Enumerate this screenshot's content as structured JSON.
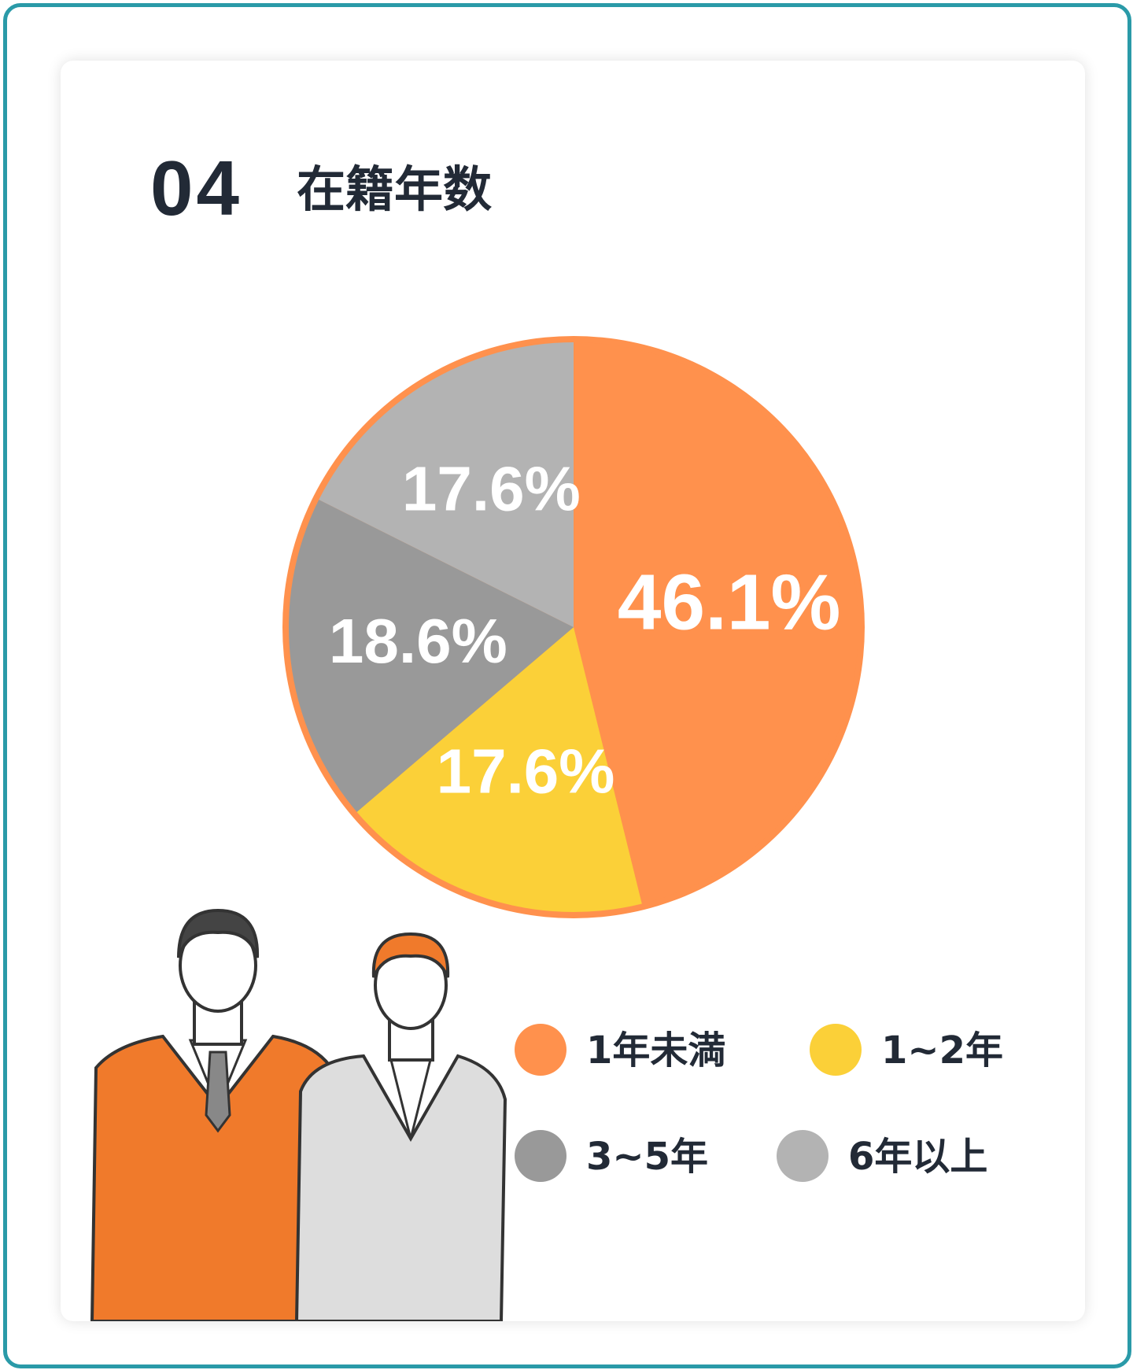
{
  "chart_data": {
    "type": "pie",
    "number": "04",
    "title": "在籍年数",
    "categories": [
      "1年未満",
      "1~2年",
      "3~5年",
      "6年以上"
    ],
    "values": [
      46.1,
      17.6,
      18.6,
      17.6
    ],
    "value_labels": [
      "46.1%",
      "17.6%",
      "18.6%",
      "17.6%"
    ],
    "colors": [
      "#ff914d",
      "#fbd038",
      "#999999",
      "#b3b3b3"
    ]
  }
}
